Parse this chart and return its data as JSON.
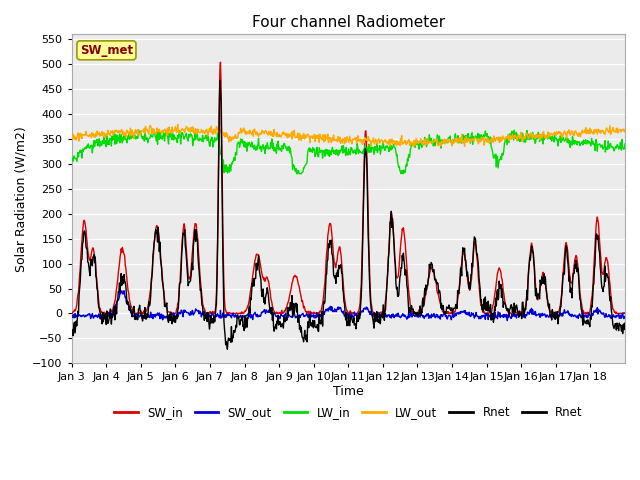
{
  "title": "Four channel Radiometer",
  "xlabel": "Time",
  "ylabel": "Solar Radiation (W/m2)",
  "ylim": [
    -100,
    560
  ],
  "yticks": [
    -100,
    -50,
    0,
    50,
    100,
    150,
    200,
    250,
    300,
    350,
    400,
    450,
    500,
    550
  ],
  "xlim": [
    0,
    960
  ],
  "xtick_positions": [
    0,
    60,
    120,
    180,
    240,
    300,
    360,
    420,
    480,
    540,
    600,
    660,
    720,
    780,
    840,
    900
  ],
  "xtick_labels": [
    "Jan 3",
    "Jan 4",
    "Jan 5",
    "Jan 6",
    "Jan 7",
    "Jan 8",
    "Jan 9",
    "Jan 10",
    "Jan 11",
    "Jan 12",
    "Jan 13",
    "Jan 14",
    "Jan 15",
    "Jan 16",
    "Jan 17",
    "Jan 18"
  ],
  "colors": {
    "SW_in": "#dd0000",
    "SW_out": "#0000dd",
    "LW_in": "#00dd00",
    "LW_out": "#ffaa00",
    "Rnet": "#000000"
  },
  "legend_label": "SW_met",
  "bg_color": "#ebebeb",
  "grid_color": "#ffffff",
  "annotation_box_color": "#ffff99",
  "annotation_text_color": "#880000",
  "figsize": [
    6.4,
    4.8
  ],
  "dpi": 100
}
